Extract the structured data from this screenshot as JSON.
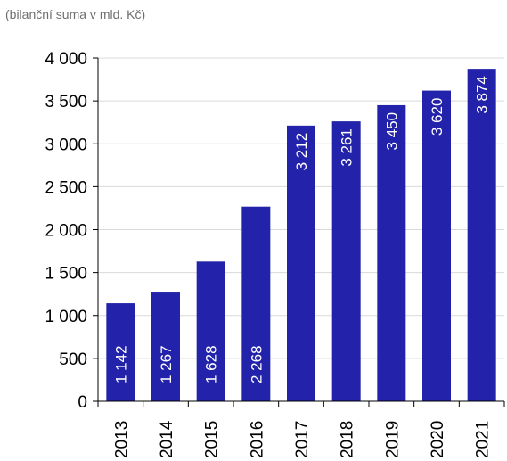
{
  "subtitle": "(bilanční suma v mld. Kč)",
  "colors": {
    "bar": "#2222aa",
    "grid": "#d9d9d9",
    "axis": "#000000",
    "label_inside": "#ffffff"
  },
  "chart_data": {
    "type": "bar",
    "title": "",
    "subtitle": "(bilanční suma v mld. Kč)",
    "xlabel": "",
    "ylabel": "",
    "categories": [
      "2013",
      "2014",
      "2015",
      "2016",
      "2017",
      "2018",
      "2019",
      "2020",
      "2021"
    ],
    "values": [
      1142,
      1267,
      1628,
      2268,
      3212,
      3261,
      3450,
      3620,
      3874
    ],
    "value_labels": [
      "1 142",
      "1 267",
      "1 628",
      "2 268",
      "3 212",
      "3 261",
      "3 450",
      "3 620",
      "3 874"
    ],
    "ylim": [
      0,
      4000
    ],
    "yticks": [
      0,
      500,
      1000,
      1500,
      2000,
      2500,
      3000,
      3500,
      4000
    ],
    "ytick_labels": [
      "0",
      "500",
      "1 000",
      "1 500",
      "2 000",
      "2 500",
      "3 000",
      "3 500",
      "4 000"
    ],
    "grid": true,
    "legend": "none"
  }
}
